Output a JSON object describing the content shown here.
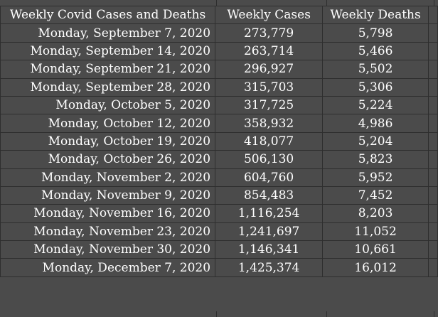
{
  "header": {
    "date_col": "Weekly Covid Cases and Deaths",
    "cases_col": "Weekly Cases",
    "deaths_col": "Weekly Deaths"
  },
  "rows": [
    {
      "date": "Monday, September 7, 2020",
      "cases": "273,779",
      "deaths": "5,798"
    },
    {
      "date": "Monday, September 14, 2020",
      "cases": "263,714",
      "deaths": "5,466"
    },
    {
      "date": "Monday, September 21, 2020",
      "cases": "296,927",
      "deaths": "5,502"
    },
    {
      "date": "Monday, September 28, 2020",
      "cases": "315,703",
      "deaths": "5,306"
    },
    {
      "date": "Monday, October 5, 2020",
      "cases": "317,725",
      "deaths": "5,224"
    },
    {
      "date": "Monday, October 12, 2020",
      "cases": "358,932",
      "deaths": "4,986"
    },
    {
      "date": "Monday, October 19, 2020",
      "cases": "418,077",
      "deaths": "5,204"
    },
    {
      "date": "Monday, October 26, 2020",
      "cases": "506,130",
      "deaths": "5,823"
    },
    {
      "date": "Monday, November 2, 2020",
      "cases": "604,760",
      "deaths": "5,952"
    },
    {
      "date": "Monday, November 9, 2020",
      "cases": "854,483",
      "deaths": "7,452"
    },
    {
      "date": "Monday, November 16, 2020",
      "cases": "1,116,254",
      "deaths": "8,203"
    },
    {
      "date": "Monday, November 23, 2020",
      "cases": "1,241,697",
      "deaths": "11,052"
    },
    {
      "date": "Monday, November 30, 2020",
      "cases": "1,146,341",
      "deaths": "10,661"
    },
    {
      "date": "Monday, December 7, 2020",
      "cases": "1,425,374",
      "deaths": "16,012"
    }
  ]
}
